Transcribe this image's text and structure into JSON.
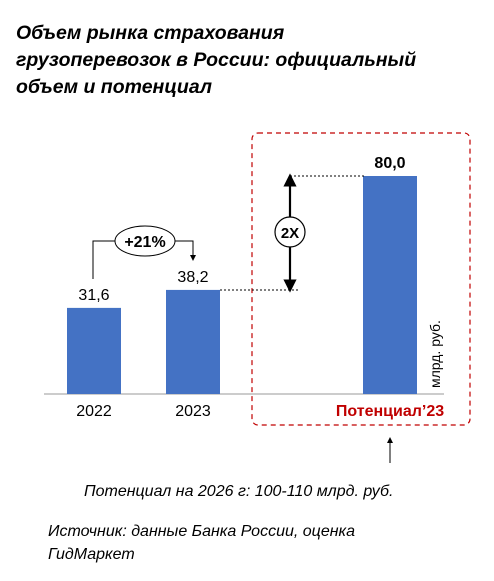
{
  "title_lines": [
    "Объем рынка страхования",
    "грузоперевозок в России: официальный",
    "объем и потенциал"
  ],
  "chart_data": {
    "type": "bar",
    "title": "Объем рынка страхования грузоперевозок в России: официальный объем и потенциал",
    "categories": [
      "2022",
      "2023",
      "Потенциал’23"
    ],
    "values": [
      31.6,
      38.2,
      80.0
    ],
    "value_labels": [
      "31,6",
      "38,2",
      "80,0"
    ],
    "unit_label": "млрд. руб.",
    "bar_color": "#4472C4",
    "highlight_color": "#C00000",
    "annotations": {
      "growth": "+21%",
      "multiplier": "2X"
    }
  },
  "footer": {
    "note": "Потенциал на 2026 г: 100-110 млрд. руб.",
    "source_lines": [
      "Источник: данные Банка России, оценка",
      "ГидМаркет"
    ]
  }
}
